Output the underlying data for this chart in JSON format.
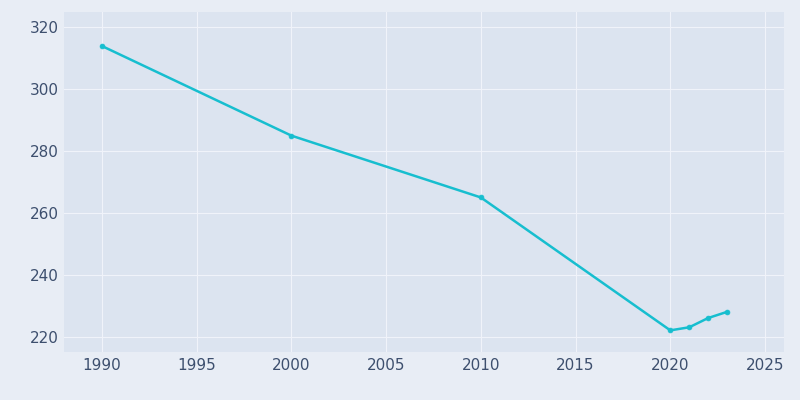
{
  "years": [
    1990,
    2000,
    2010,
    2020,
    2021,
    2022,
    2023
  ],
  "population": [
    314,
    285,
    265,
    222,
    223,
    226,
    228
  ],
  "line_color": "#17becf",
  "marker": "o",
  "marker_size": 3.5,
  "line_width": 1.8,
  "fig_bg_color": "#e8edf5",
  "plot_bg_color": "#dce4f0",
  "xlim": [
    1988,
    2026
  ],
  "ylim": [
    215,
    325
  ],
  "xticks": [
    1990,
    1995,
    2000,
    2005,
    2010,
    2015,
    2020,
    2025
  ],
  "yticks": [
    220,
    240,
    260,
    280,
    300,
    320
  ],
  "grid_color": "#f0f3fa",
  "tick_label_color": "#3d4f6e",
  "tick_label_size": 11
}
